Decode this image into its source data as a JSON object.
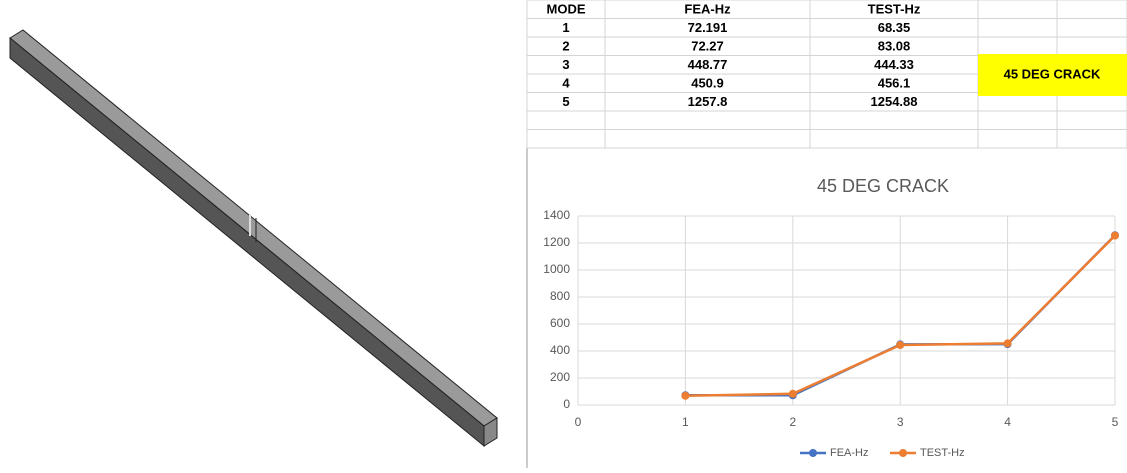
{
  "table": {
    "header": [
      "MODE",
      "FEA-Hz",
      "TEST-Hz"
    ],
    "rows": [
      [
        "1",
        "72.191",
        "68.35"
      ],
      [
        "2",
        "72.27",
        "83.08"
      ],
      [
        "3",
        "448.77",
        "444.33"
      ],
      [
        "4",
        "450.9",
        "456.1"
      ],
      [
        "5",
        "1257.8",
        "1254.88"
      ]
    ],
    "note": "45 DEG CRACK"
  },
  "chart_data": {
    "type": "line",
    "title": "45 DEG CRACK",
    "x": [
      1,
      2,
      3,
      4,
      5
    ],
    "series": [
      {
        "name": "FEA-Hz",
        "color": "#4472c4",
        "values": [
          72.191,
          72.27,
          448.77,
          450.9,
          1257.8
        ]
      },
      {
        "name": "TEST-Hz",
        "color": "#ed7d31",
        "values": [
          68.35,
          83.08,
          444.33,
          456.1,
          1254.88
        ]
      }
    ],
    "xlim": [
      0,
      5
    ],
    "xticks": [
      0,
      1,
      2,
      3,
      4,
      5
    ],
    "ylim": [
      0,
      1400
    ],
    "yticks": [
      0,
      200,
      400,
      600,
      800,
      1000,
      1200,
      1400
    ],
    "grid": true,
    "legend": "bottom"
  }
}
